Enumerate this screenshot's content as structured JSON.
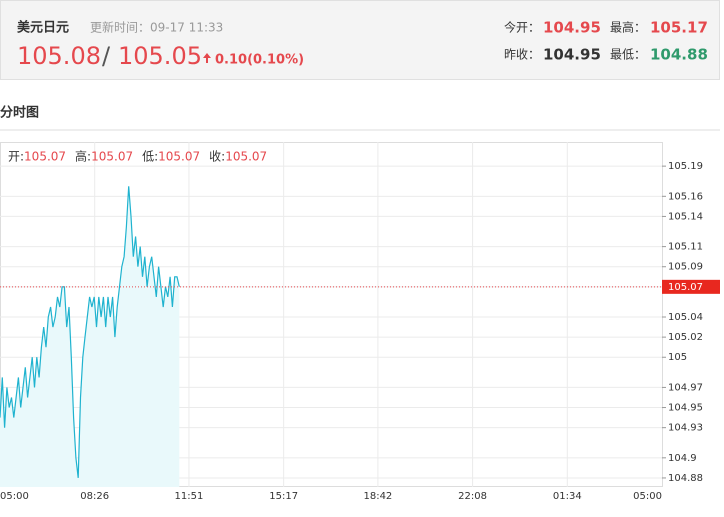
{
  "header": {
    "name": "美元日元",
    "update": "更新时间：09-17 11:33",
    "bid": "105.08",
    "separator": "/",
    "ask": "105.05",
    "change": "0.10(0.10%)",
    "quotes": [
      {
        "label": "今开：",
        "value": "104.95"
      },
      {
        "label": "最高：",
        "value": "105.17"
      },
      {
        "label": "昨收：",
        "value": "104.95"
      },
      {
        "label": "最低：",
        "value": "104.88"
      }
    ]
  },
  "section_title": "分时图",
  "chart_data": {
    "type": "area",
    "ohlc": [
      {
        "label": "开:",
        "value": 105.07
      },
      {
        "label": "高:",
        "value": 105.07
      },
      {
        "label": "低:",
        "value": 105.07
      },
      {
        "label": "收:",
        "value": 105.07
      }
    ],
    "last_price": 105.07,
    "x": [
      "05:00",
      "05:05",
      "05:10",
      "05:15",
      "05:20",
      "05:25",
      "05:30",
      "05:35",
      "05:40",
      "05:45",
      "05:50",
      "05:55",
      "06:00",
      "06:05",
      "06:10",
      "06:15",
      "06:20",
      "06:25",
      "06:30",
      "06:35",
      "06:40",
      "06:45",
      "06:50",
      "06:55",
      "07:00",
      "07:05",
      "07:10",
      "07:15",
      "07:20",
      "07:25",
      "07:30",
      "07:35",
      "07:40",
      "07:45",
      "07:50",
      "07:55",
      "08:00",
      "08:05",
      "08:10",
      "08:15",
      "08:20",
      "08:25",
      "08:30",
      "08:35",
      "08:40",
      "08:45",
      "08:50",
      "08:55",
      "09:00",
      "09:05",
      "09:10",
      "09:15",
      "09:20",
      "09:25",
      "09:30",
      "09:35",
      "09:40",
      "09:45",
      "09:50",
      "09:55",
      "10:00",
      "10:05",
      "10:10",
      "10:15",
      "10:20",
      "10:25",
      "10:30",
      "10:35",
      "10:40",
      "10:45",
      "10:50",
      "10:55",
      "11:00",
      "11:05",
      "11:10",
      "11:15",
      "11:20",
      "11:25",
      "11:30"
    ],
    "series": [
      {
        "color": "#1fb3cf",
        "fill": "#e9f9fb",
        "values": [
          104.94,
          104.98,
          104.93,
          104.97,
          104.95,
          104.96,
          104.94,
          104.96,
          104.98,
          104.95,
          104.97,
          104.99,
          104.96,
          104.98,
          105.0,
          104.97,
          105.0,
          104.98,
          105.01,
          105.03,
          105.01,
          105.04,
          105.05,
          105.03,
          105.04,
          105.06,
          105.05,
          105.07,
          105.07,
          105.03,
          105.05,
          105.0,
          104.94,
          104.9,
          104.88,
          104.96,
          105.0,
          105.02,
          105.04,
          105.06,
          105.05,
          105.06,
          105.03,
          105.06,
          105.04,
          105.06,
          105.03,
          105.06,
          105.04,
          105.06,
          105.02,
          105.05,
          105.07,
          105.09,
          105.1,
          105.13,
          105.17,
          105.14,
          105.1,
          105.12,
          105.09,
          105.11,
          105.08,
          105.1,
          105.07,
          105.09,
          105.1,
          105.08,
          105.06,
          105.09,
          105.07,
          105.05,
          105.07,
          105.06,
          105.08,
          105.05,
          105.08,
          105.08,
          105.07
        ]
      }
    ],
    "xticks": [
      "05:00",
      "08:26",
      "11:51",
      "15:17",
      "18:42",
      "22:08",
      "01:34",
      "05:00"
    ],
    "ylim": [
      104.871,
      105.214
    ],
    "yticks": [
      104.88,
      104.9,
      104.93,
      104.95,
      104.97,
      105.0,
      105.02,
      105.04,
      105.07,
      105.09,
      105.11,
      105.14,
      105.16,
      105.19
    ],
    "grid": true
  }
}
